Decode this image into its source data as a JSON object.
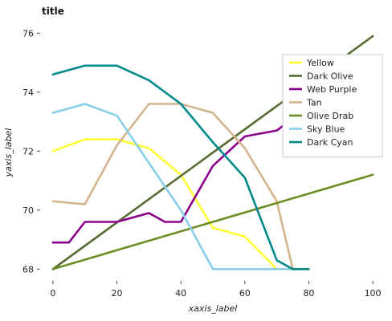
{
  "chart_data": {
    "type": "line",
    "title": "title",
    "xlabel": "xaxis_label",
    "ylabel": "yaxis_label",
    "xlim": [
      -4,
      104
    ],
    "ylim": [
      67.6,
      76.2
    ],
    "xticks": [
      0,
      20,
      40,
      60,
      80,
      100
    ],
    "yticks": [
      68,
      70,
      72,
      74,
      76
    ],
    "grid": false,
    "legend_position": "right",
    "series": [
      {
        "name": "Yellow",
        "color": "#ffff33",
        "x": [
          0,
          10,
          20,
          30,
          40,
          50,
          60,
          70,
          80
        ],
        "y": [
          72.0,
          72.4,
          72.4,
          72.1,
          71.2,
          69.4,
          69.1,
          68.0,
          68.0
        ]
      },
      {
        "name": "Dark Olive",
        "color": "#556b2f",
        "x": [
          0,
          100
        ],
        "y": [
          68.0,
          75.9
        ]
      },
      {
        "name": "Web Purple",
        "color": "#8b008b",
        "x": [
          0,
          5,
          10,
          20,
          30,
          35,
          40,
          50,
          60,
          70,
          80,
          100
        ],
        "y": [
          68.9,
          68.9,
          69.6,
          69.6,
          69.9,
          69.6,
          69.6,
          71.5,
          72.5,
          72.7,
          73.5,
          74.7
        ]
      },
      {
        "name": "Tan",
        "color": "#d2b48c",
        "x": [
          0,
          10,
          20,
          30,
          40,
          50,
          60,
          70,
          75,
          80
        ],
        "y": [
          70.3,
          70.2,
          72.2,
          73.6,
          73.6,
          73.3,
          72.1,
          70.3,
          68.0,
          68.0
        ]
      },
      {
        "name": "Olive Drab",
        "color": "#6b8e23",
        "x": [
          0,
          100
        ],
        "y": [
          68.0,
          71.2
        ]
      },
      {
        "name": "Sky Blue",
        "color": "#87ceeb",
        "x": [
          0,
          10,
          20,
          30,
          40,
          50,
          60,
          80
        ],
        "y": [
          73.3,
          73.6,
          73.2,
          71.6,
          70.0,
          68.0,
          68.0,
          68.0
        ]
      },
      {
        "name": "Dark Cyan",
        "color": "#008b8b",
        "x": [
          0,
          10,
          20,
          30,
          40,
          50,
          60,
          70,
          75,
          80
        ],
        "y": [
          74.6,
          74.9,
          74.9,
          74.4,
          73.6,
          72.3,
          71.1,
          68.3,
          68.0,
          68.0
        ]
      }
    ],
    "legend_order": [
      "Yellow",
      "Dark Olive",
      "Web Purple",
      "Tan",
      "Olive Drab",
      "Sky Blue",
      "Dark Cyan"
    ]
  }
}
